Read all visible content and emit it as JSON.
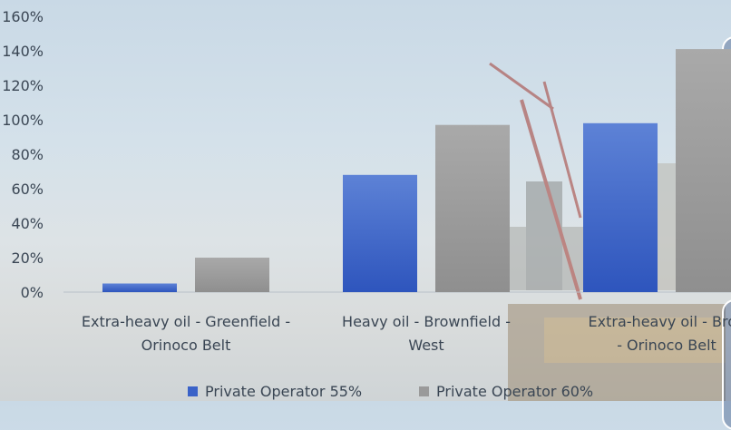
{
  "chart_data": {
    "type": "bar",
    "categories": [
      [
        "Extra-heavy oil - Greenfield -",
        "Orinoco Belt"
      ],
      [
        "Heavy oil - Brownfield -",
        "West"
      ],
      [
        "Extra-heavy oil - Brov",
        "- Orinoco Belt"
      ]
    ],
    "series": [
      {
        "name": "Private Operator 55%",
        "values": [
          5,
          68,
          98
        ],
        "color": "#3a62c8"
      },
      {
        "name": "Private Operator 60%",
        "values": [
          20,
          97,
          141
        ],
        "color": "#9a9a9a"
      }
    ],
    "y_ticks": [
      "0%",
      "20%",
      "40%",
      "60%",
      "80%",
      "100%",
      "120%",
      "140%",
      "160%"
    ],
    "ylim": [
      0,
      160
    ],
    "grid": false,
    "legend_position": "bottom"
  }
}
